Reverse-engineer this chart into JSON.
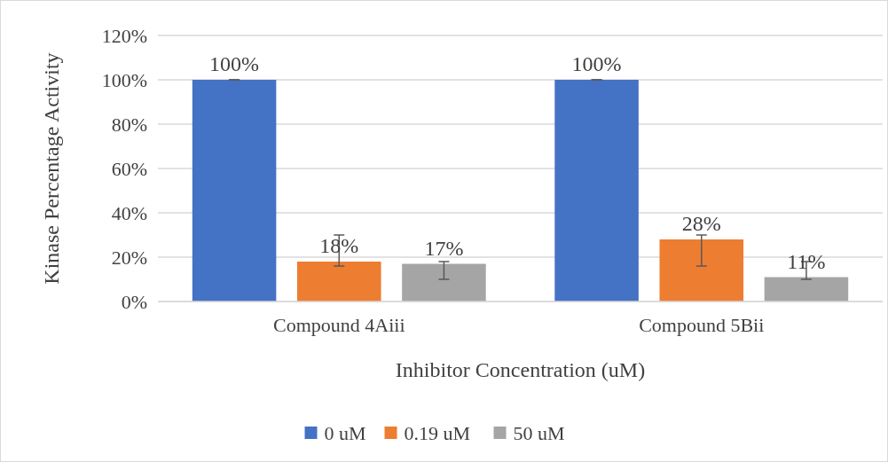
{
  "chart_data": {
    "type": "bar",
    "xlabel": "Inhibitor Concentration (uM)",
    "ylabel": "Kinase Percentage Activity",
    "categories": [
      "Compound 4Aiii",
      "Compound 5Bii"
    ],
    "series": [
      {
        "name": "0 uM",
        "color": "#4472c4",
        "values": [
          100,
          100
        ],
        "errors": [
          0,
          0
        ],
        "value_labels": [
          "100%",
          "100%"
        ]
      },
      {
        "name": "0.19 uM",
        "color": "#ed7d31",
        "values": [
          18,
          28
        ],
        "errors": [
          [
            16,
            30
          ],
          [
            16,
            30
          ]
        ],
        "value_labels": [
          "18%",
          "28%"
        ]
      },
      {
        "name": "50 uM",
        "color": "#a5a5a5",
        "values": [
          17,
          11
        ],
        "errors": [
          [
            10,
            18
          ],
          [
            10,
            18
          ]
        ],
        "value_labels": [
          "17%",
          "11%"
        ]
      }
    ],
    "ylim": [
      0,
      120
    ],
    "yticks": [
      {
        "value": 0,
        "label": "0%"
      },
      {
        "value": 20,
        "label": "20%"
      },
      {
        "value": 40,
        "label": "40%"
      },
      {
        "value": 60,
        "label": "60%"
      },
      {
        "value": 80,
        "label": "80%"
      },
      {
        "value": 100,
        "label": "100%"
      },
      {
        "value": 120,
        "label": "120%"
      }
    ],
    "grid": "y",
    "legend": "bottom"
  }
}
